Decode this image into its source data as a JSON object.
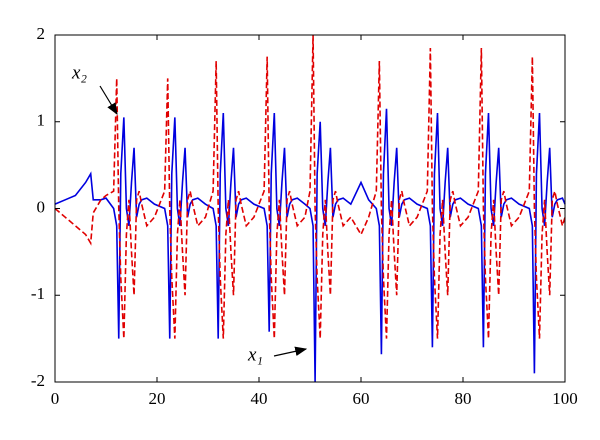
{
  "chart_data": {
    "type": "line",
    "x": [
      0,
      2,
      4,
      6,
      7,
      7.5,
      9,
      10,
      11.5,
      12.1,
      12.5,
      12.9,
      13.5,
      14,
      14.5,
      15,
      15.5,
      16,
      16.5,
      17,
      18,
      19.5,
      21.5,
      22.1,
      22.5,
      22.9,
      23.5,
      24,
      24.5,
      25,
      25.5,
      26,
      26.5,
      27,
      28,
      29.5,
      31,
      31.6,
      32,
      32.4,
      33,
      33.5,
      34,
      34.5,
      35,
      35.5,
      36,
      36.5,
      37.5,
      39,
      41,
      41.6,
      42,
      42.4,
      43,
      43.5,
      44,
      44.5,
      45,
      45.5,
      46,
      46.5,
      47.5,
      49,
      50,
      50.6,
      51,
      51.4,
      52,
      52.5,
      53,
      53.5,
      54,
      54.5,
      55,
      55.5,
      56.5,
      58,
      60,
      61.5,
      63,
      63.6,
      64,
      64.4,
      65,
      65.5,
      66,
      66.5,
      67,
      67.5,
      68,
      68.5,
      69.5,
      71,
      73,
      73.6,
      74,
      74.4,
      75,
      75.5,
      76,
      76.5,
      77,
      77.5,
      78,
      78.5,
      79.5,
      81,
      83,
      83.6,
      84,
      84.4,
      85,
      85.5,
      86,
      86.5,
      87,
      87.5,
      88,
      88.5,
      89.5,
      91,
      93,
      93.6,
      94,
      94.4,
      95,
      95.5,
      96,
      96.5,
      97,
      97.5,
      98,
      98.5,
      99.5,
      100
    ],
    "series": [
      {
        "name": "x₁",
        "color": "#0000e0",
        "line_style": "solid",
        "values": [
          0.05,
          0.1,
          0.15,
          0.3,
          0.4,
          0.1,
          0.1,
          0.12,
          0,
          -0.2,
          -1.5,
          0.4,
          1.05,
          0,
          -0.2,
          0.3,
          0.7,
          -0.1,
          0.05,
          0.1,
          0.12,
          0.05,
          0,
          -0.2,
          -1.5,
          0.4,
          1.05,
          0,
          -0.2,
          0.3,
          0.7,
          -0.1,
          0.05,
          0.1,
          0.12,
          0.05,
          0,
          -0.2,
          -1.5,
          0.4,
          1.1,
          0,
          -0.2,
          0.3,
          0.7,
          -0.1,
          0.05,
          0.1,
          0.12,
          0.05,
          0,
          -0.2,
          -1.42,
          0.4,
          1.1,
          0,
          -0.2,
          0.3,
          0.7,
          -0.1,
          0.05,
          0.1,
          0.12,
          0.05,
          0,
          -0.2,
          -2,
          0.4,
          1,
          0,
          -0.2,
          0.3,
          0.7,
          -0.1,
          0.05,
          0.1,
          0.12,
          0.05,
          0.3,
          0.1,
          0,
          -0.2,
          -1.68,
          0.4,
          1.15,
          0,
          -0.2,
          0.3,
          0.7,
          -0.1,
          0.05,
          0.1,
          0.12,
          0.05,
          0,
          -0.2,
          -1.6,
          0.4,
          1.1,
          0,
          -0.2,
          0.3,
          0.7,
          -0.1,
          0.05,
          0.1,
          0.12,
          0.05,
          0,
          -0.2,
          -1.6,
          0.4,
          1.1,
          0,
          -0.2,
          0.3,
          0.7,
          -0.1,
          0.05,
          0.1,
          0.12,
          0.05,
          0,
          -0.2,
          -1.9,
          0.4,
          1.1,
          0,
          -0.2,
          0.3,
          0.7,
          -0.1,
          0.05,
          0.1,
          0.12,
          0.05
        ]
      },
      {
        "name": "x₂",
        "color": "#e00000",
        "line_style": "dashed",
        "values": [
          0,
          -0.1,
          -0.2,
          -0.3,
          -0.4,
          -0.05,
          0.1,
          0.15,
          0.2,
          1.5,
          0,
          -0.8,
          -1.5,
          -0.3,
          0.1,
          -0.5,
          -1,
          0.1,
          0.2,
          0.05,
          -0.2,
          -0.1,
          0.2,
          1.5,
          0,
          -0.8,
          -1.5,
          -0.3,
          0.1,
          -0.5,
          -1,
          0.1,
          0.2,
          0.05,
          -0.2,
          -0.1,
          0.2,
          1.7,
          0,
          -0.8,
          -1.5,
          -0.3,
          0.1,
          -0.5,
          -1,
          0.1,
          0.2,
          0.05,
          -0.2,
          -0.1,
          0.2,
          1.75,
          0,
          -0.8,
          -1.5,
          -0.3,
          0.1,
          -0.5,
          -1,
          0.1,
          0.2,
          0.05,
          -0.2,
          -0.1,
          0.2,
          2,
          0,
          -0.8,
          -1.5,
          -0.3,
          0.1,
          -0.5,
          -1,
          0.1,
          0.2,
          0.05,
          -0.2,
          -0.1,
          -0.3,
          -0.1,
          0.2,
          1.7,
          0,
          -0.8,
          -1.5,
          -0.3,
          0.1,
          -0.5,
          -1,
          0.1,
          0.2,
          0.05,
          -0.2,
          -0.1,
          0.2,
          1.85,
          0,
          -0.8,
          -1.5,
          -0.3,
          0.1,
          -0.5,
          -1,
          0.1,
          0.2,
          0.05,
          -0.2,
          -0.1,
          0.2,
          1.85,
          0,
          -0.8,
          -1.5,
          -0.3,
          0.1,
          -0.5,
          -1,
          0.1,
          0.2,
          0.05,
          -0.2,
          -0.1,
          0.2,
          1.75,
          0,
          -0.8,
          -1.5,
          -0.3,
          0.1,
          -0.5,
          -1,
          0.1,
          0.2,
          0.05,
          -0.2,
          -0.1
        ]
      }
    ],
    "xlim": [
      0,
      100
    ],
    "xticks": [
      0,
      20,
      40,
      60,
      80,
      100
    ],
    "ylim": [
      -2,
      2
    ],
    "yticks": [
      -2,
      -1,
      0,
      1,
      2
    ],
    "grid": false
  }
}
